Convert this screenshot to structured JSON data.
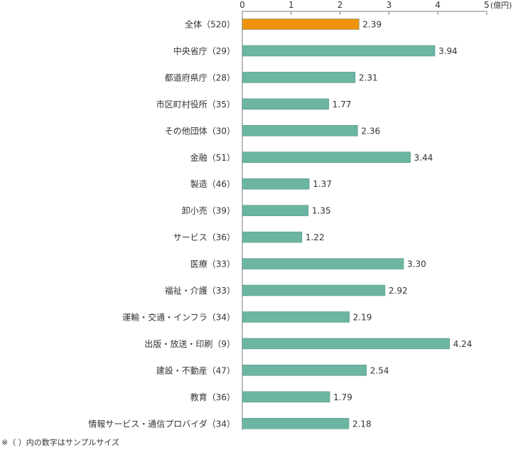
{
  "chart_data": {
    "type": "bar",
    "orientation": "horizontal",
    "unit_label": "(億円)",
    "xlim": [
      0,
      5
    ],
    "x_ticks": [
      0,
      1,
      2,
      3,
      4,
      5
    ],
    "grid": false,
    "categories": [
      "全体（520）",
      "中央省庁（29）",
      "都道府県庁（28）",
      "市区町村役所（35）",
      "その他団体（30）",
      "金融（51）",
      "製造（46）",
      "卸小売（39）",
      "サービス（36）",
      "医療（33）",
      "福祉・介護（33）",
      "運輸・交通・インフラ（34）",
      "出版・放送・印刷（9）",
      "建設・不動産（47）",
      "教育（36）",
      "情報サービス・通信プロバイダ（34）"
    ],
    "values": [
      2.39,
      3.94,
      2.31,
      1.77,
      2.36,
      3.44,
      1.37,
      1.35,
      1.22,
      3.3,
      2.92,
      2.19,
      4.24,
      2.54,
      1.79,
      2.18
    ],
    "value_labels": [
      "2.39",
      "3.94",
      "2.31",
      "1.77",
      "2.36",
      "3.44",
      "1.37",
      "1.35",
      "1.22",
      "3.30",
      "2.92",
      "2.19",
      "4.24",
      "2.54",
      "1.79",
      "2.18"
    ],
    "colors": {
      "highlight": "#F0920E",
      "default": "#6BB5A2",
      "axis": "#7A7A7A"
    },
    "highlight_index": 0
  },
  "note": "※（ ）内の数字はサンプルサイズ"
}
